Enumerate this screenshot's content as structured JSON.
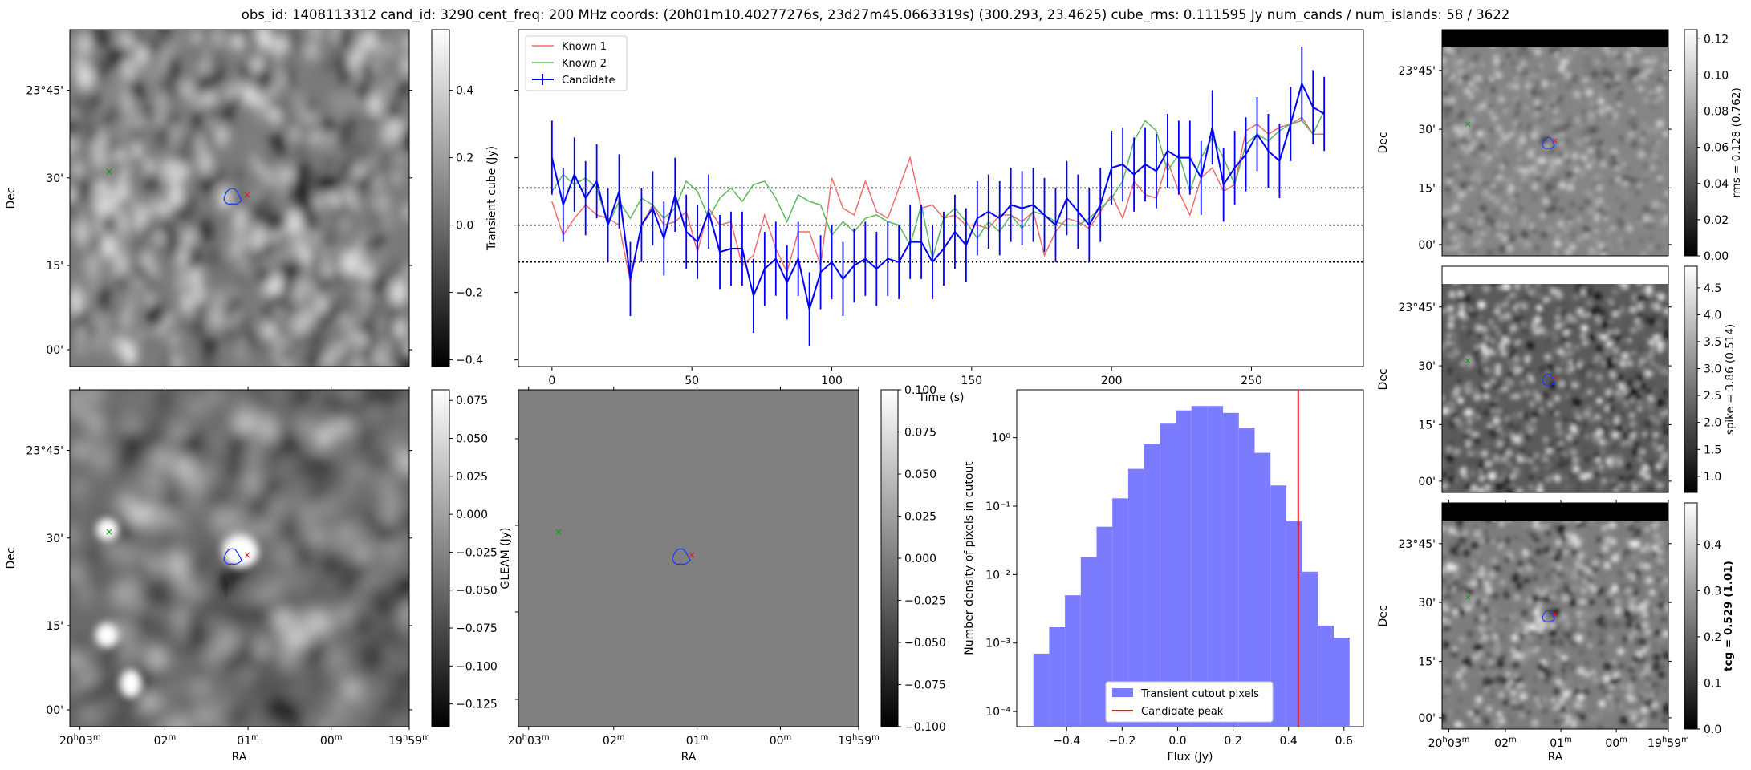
{
  "suptitle": "obs_id: 1408113312 cand_id: 3290 cent_freq: 200 MHz coords: (20h01m10.40277276s, 23d27m45.0663319s) (300.293, 23.4625) cube_rms: 0.111595 Jy num_cands / num_islands: 58 / 3622",
  "sky_axes": {
    "xlabel": "RA",
    "ylabel": "Dec",
    "ra_ticks": [
      "20h03m",
      "02m",
      "01m",
      "00m",
      "19h59m"
    ],
    "dec_ticks": [
      "23°45'",
      "30'",
      "15'",
      "00'"
    ]
  },
  "panels": {
    "transient": {
      "colorbar_label": "Transient cube (Jy)",
      "colorbar_ticks": [
        "0.4",
        "0.2",
        "0.0",
        "−0.2",
        "−0.4"
      ],
      "vmin": -0.42,
      "vmax": 0.58
    },
    "deep": {
      "colorbar_ticks": [
        "0.075",
        "0.050",
        "0.025",
        "0.000",
        "−0.025",
        "−0.050",
        "−0.075",
        "−0.100",
        "−0.125"
      ],
      "vmin": -0.14,
      "vmax": 0.082
    },
    "gleam": {
      "ylabel": "GLEAM (Jy)",
      "colorbar_ticks": [
        "0.100",
        "0.075",
        "0.050",
        "0.025",
        "0.000",
        "−0.025",
        "−0.050",
        "−0.075",
        "−0.100"
      ],
      "vmin": -0.1,
      "vmax": 0.1
    },
    "rms": {
      "colorbar_label": "rms = 0.128 (0.762)",
      "colorbar_ticks": [
        "0.12",
        "0.10",
        "0.08",
        "0.06",
        "0.04",
        "0.02",
        "0.00"
      ],
      "vmin": 0.0,
      "vmax": 0.125
    },
    "spike": {
      "colorbar_label": "spike = 3.86 (0.514)",
      "colorbar_ticks": [
        "4.5",
        "4.0",
        "3.5",
        "3.0",
        "2.5",
        "2.0",
        "1.5",
        "1.0"
      ],
      "vmin": 0.7,
      "vmax": 4.9
    },
    "tcg": {
      "colorbar_label": "tcg = 0.529 (1.01)",
      "colorbar_ticks": [
        "0.4",
        "0.3",
        "0.2",
        "0.1",
        "0.0"
      ],
      "vmin": 0.0,
      "vmax": 0.49
    }
  },
  "chart_data": [
    {
      "type": "line",
      "name": "lightcurve",
      "xlabel": "Time (s)",
      "ylabel": "",
      "xlim": [
        -12,
        290
      ],
      "ylim": [
        -0.42,
        0.58
      ],
      "x_ticks": [
        0,
        50,
        100,
        150,
        200,
        250
      ],
      "hlines": [
        0.11,
        0.0,
        -0.11
      ],
      "legend": "top-left",
      "series": [
        {
          "name": "Known 1",
          "color": "#f06c6c",
          "x_step": 4,
          "values": [
            0.07,
            -0.03,
            0.02,
            0.06,
            0.03,
            0.02,
            0.0,
            -0.17,
            0.0,
            0.06,
            0.0,
            0.01,
            0.04,
            -0.08,
            0.05,
            0.0,
            0.01,
            -0.12,
            -0.09,
            0.03,
            -0.07,
            -0.14,
            -0.02,
            -0.02,
            -0.12,
            0.14,
            0.05,
            0.03,
            0.13,
            0.04,
            0.02,
            0.11,
            0.2,
            0.05,
            0.06,
            0.02,
            0.03,
            0.0,
            0.0,
            -0.01,
            0.03,
            0.03,
            0.01,
            0.04,
            -0.09,
            -0.02,
            0.02,
            0.01,
            -0.01,
            0.04,
            0.09,
            0.02,
            0.13,
            0.09,
            0.08,
            0.19,
            0.1,
            0.03,
            0.14,
            0.17,
            0.1,
            0.12,
            0.28,
            0.3,
            0.27,
            0.29,
            0.3,
            0.32,
            0.27,
            0.27
          ]
        },
        {
          "name": "Known 2",
          "color": "#5cb85c",
          "x_step": 4,
          "values": [
            0.1,
            0.15,
            0.12,
            0.14,
            0.11,
            0.0,
            0.07,
            0.02,
            0.08,
            0.06,
            0.02,
            0.05,
            0.13,
            0.1,
            0.02,
            0.08,
            0.11,
            0.07,
            0.12,
            0.13,
            0.08,
            0.01,
            0.09,
            0.07,
            0.06,
            -0.03,
            0.01,
            -0.02,
            0.02,
            0.03,
            0.01,
            0.0,
            -0.06,
            0.06,
            -0.1,
            0.02,
            0.05,
            0.01,
            -0.04,
            0.01,
            -0.02,
            0.03,
            -0.01,
            0.04,
            0.03,
            0.01,
            0.0,
            0.0,
            0.02,
            0.05,
            0.08,
            0.13,
            0.25,
            0.31,
            0.28,
            0.16,
            0.21,
            0.1,
            0.2,
            0.26,
            0.2,
            0.12,
            0.24,
            0.27,
            0.25,
            0.28,
            0.3,
            0.31,
            0.27,
            0.34
          ]
        },
        {
          "name": "Candidate",
          "color": "#0000ff",
          "x_step": 4,
          "errorbar": 0.11,
          "values": [
            0.2,
            0.06,
            0.15,
            0.08,
            0.13,
            0.0,
            0.1,
            -0.16,
            0.0,
            0.05,
            -0.04,
            0.09,
            -0.02,
            -0.05,
            0.04,
            -0.08,
            -0.07,
            -0.07,
            -0.21,
            -0.13,
            -0.1,
            -0.17,
            -0.1,
            -0.25,
            -0.14,
            -0.11,
            -0.16,
            -0.12,
            -0.1,
            -0.13,
            -0.1,
            -0.11,
            -0.05,
            -0.05,
            -0.11,
            -0.07,
            -0.02,
            -0.06,
            0.02,
            0.04,
            0.02,
            0.06,
            0.05,
            0.06,
            0.03,
            0.0,
            0.08,
            0.04,
            0.0,
            0.06,
            0.17,
            0.18,
            0.15,
            0.18,
            0.16,
            0.22,
            0.2,
            0.2,
            0.14,
            0.29,
            0.12,
            0.17,
            0.21,
            0.27,
            0.22,
            0.19,
            0.3,
            0.42,
            0.35,
            0.33
          ]
        }
      ]
    },
    {
      "type": "bar",
      "name": "histogram",
      "xlabel": "Flux (Jy)",
      "ylabel": "Number density of pixels in cutout",
      "yscale": "log",
      "xlim": [
        -0.58,
        0.67
      ],
      "ylim": [
        6e-05,
        5.0
      ],
      "x_ticks": [
        -0.4,
        -0.2,
        0.0,
        0.2,
        0.4,
        0.6
      ],
      "x_tick_labels": [
        "−0.4",
        "−0.2",
        "0.0",
        "0.2",
        "0.4",
        "0.6"
      ],
      "y_tick_labels": [
        "10⁰",
        "10⁻¹",
        "10⁻²",
        "10⁻³",
        "10⁻⁴"
      ],
      "y_ticks": [
        1,
        0.1,
        0.01,
        0.001,
        0.0001
      ],
      "bin_edges": [
        -0.52,
        -0.463,
        -0.406,
        -0.349,
        -0.292,
        -0.235,
        -0.178,
        -0.121,
        -0.064,
        -0.007,
        0.05,
        0.107,
        0.164,
        0.221,
        0.278,
        0.335,
        0.392,
        0.449,
        0.506,
        0.563,
        0.62
      ],
      "values": [
        0.0007,
        0.0017,
        0.005,
        0.018,
        0.05,
        0.13,
        0.35,
        0.8,
        1.6,
        2.5,
        2.9,
        2.9,
        2.3,
        1.4,
        0.6,
        0.2,
        0.06,
        0.011,
        0.0018,
        0.0012
      ],
      "candidate_peak": 0.435,
      "series": [
        {
          "name": "Transient cutout pixels",
          "color": "#7b7bff"
        },
        {
          "name": "Candidate peak",
          "color": "#e41a1c"
        }
      ],
      "legend": "bottom-center"
    }
  ]
}
